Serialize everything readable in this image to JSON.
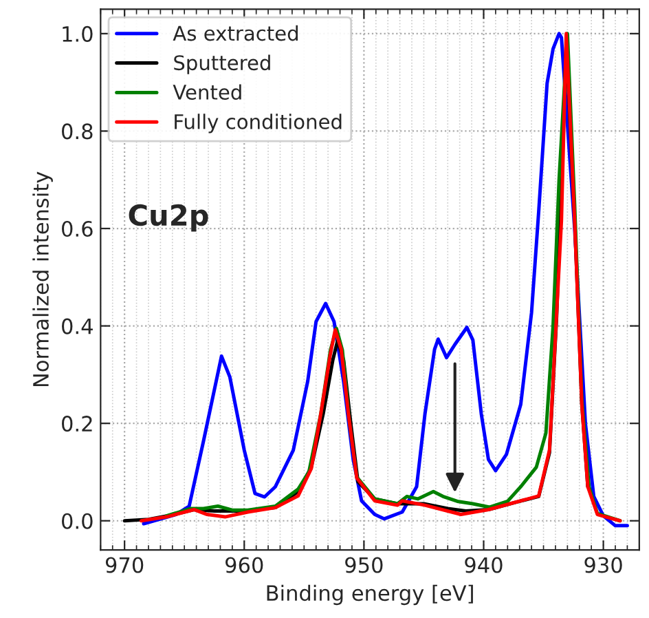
{
  "chart_data": {
    "type": "line",
    "xlabel": "Binding energy [eV]",
    "ylabel": "Normalized intensity",
    "annotations": [
      "Cu2p"
    ],
    "xlim": [
      972,
      927
    ],
    "ylim": [
      -0.06,
      1.05
    ],
    "xticks": [
      970,
      960,
      950,
      940,
      930
    ],
    "yticks": [
      {
        "value": 0,
        "label": "0.0"
      },
      {
        "value": 0.2,
        "label": "0.2"
      },
      {
        "value": 0.4,
        "label": "0.4"
      },
      {
        "value": 0.6,
        "label": "0.6"
      },
      {
        "value": 0.8,
        "label": "0.8"
      },
      {
        "value": 1.0,
        "label": "1.0"
      }
    ],
    "grid": true,
    "legend": "top left",
    "line_style": "solid",
    "series": [
      {
        "name": "As extracted",
        "color": "#0000ff",
        "x": [
          968.4,
          965.7,
          964.6,
          963.4,
          961.9,
          961.2,
          960.0,
          959.1,
          958.3,
          957.4,
          955.9,
          954.7,
          954.0,
          953.2,
          952.5,
          951.7,
          950.9,
          950.2,
          949.1,
          948.3,
          946.8,
          945.6,
          944.9,
          944.1,
          943.8,
          943.1,
          942.4,
          941.4,
          940.9,
          940.2,
          939.6,
          939.0,
          938.1,
          936.9,
          936.0,
          935.4,
          934.7,
          934.2,
          933.7,
          933.5,
          932.4,
          931.5,
          930.8,
          930.0,
          929.0,
          928.0
        ],
        "values": [
          -0.006,
          0.013,
          0.03,
          0.164,
          0.338,
          0.295,
          0.145,
          0.056,
          0.049,
          0.07,
          0.145,
          0.286,
          0.409,
          0.446,
          0.409,
          0.286,
          0.126,
          0.041,
          0.013,
          0.004,
          0.018,
          0.07,
          0.22,
          0.352,
          0.373,
          0.335,
          0.362,
          0.397,
          0.371,
          0.22,
          0.126,
          0.103,
          0.136,
          0.239,
          0.427,
          0.635,
          0.898,
          0.969,
          1.0,
          0.992,
          0.6,
          0.2,
          0.05,
          0.01,
          -0.01,
          -0.01
        ]
      },
      {
        "name": "Sputtered",
        "color": "#000000",
        "x": [
          970,
          968,
          966,
          964.2,
          962.5,
          960,
          957.4,
          955.5,
          954.4,
          953.4,
          952.6,
          952.2,
          951.7,
          951.1,
          950.5,
          949.1,
          947.2,
          945,
          943,
          941.5,
          939.6,
          937,
          935.4,
          934.5,
          933.9,
          933.5,
          933.1,
          932.4,
          931.8,
          931.3
        ],
        "values": [
          0.0,
          0.003,
          0.012,
          0.023,
          0.02,
          0.02,
          0.027,
          0.06,
          0.11,
          0.22,
          0.33,
          0.37,
          0.33,
          0.2,
          0.08,
          0.045,
          0.035,
          0.035,
          0.025,
          0.02,
          0.023,
          0.04,
          0.05,
          0.14,
          0.42,
          0.7,
          0.98,
          0.62,
          0.24,
          0.07
        ]
      },
      {
        "name": "Vented",
        "color": "#008000",
        "x": [
          966.5,
          964.5,
          963.4,
          962.2,
          961.0,
          959.7,
          957.4,
          955.5,
          954.6,
          953.6,
          952.8,
          952.3,
          951.8,
          951.2,
          950.6,
          949.1,
          947.2,
          946.4,
          945.5,
          944.2,
          943.4,
          942.2,
          940.9,
          939.5,
          938.0,
          936.9,
          935.6,
          934.8,
          934.2,
          933.7,
          933.0,
          932.4,
          931.8,
          931.2,
          930.5,
          928.6
        ],
        "values": [
          0.01,
          0.025,
          0.025,
          0.03,
          0.022,
          0.022,
          0.03,
          0.065,
          0.1,
          0.22,
          0.35,
          0.395,
          0.35,
          0.2,
          0.09,
          0.045,
          0.035,
          0.05,
          0.045,
          0.06,
          0.05,
          0.04,
          0.035,
          0.028,
          0.04,
          0.07,
          0.11,
          0.18,
          0.4,
          0.7,
          1.0,
          0.65,
          0.25,
          0.07,
          0.015,
          0.0
        ]
      },
      {
        "name": "Fully conditioned",
        "color": "#ff0000",
        "x": [
          968.6,
          966.5,
          964.2,
          963.1,
          961.6,
          959.7,
          957.4,
          955.5,
          954.4,
          953.6,
          952.8,
          952.4,
          951.9,
          951.3,
          950.6,
          949.1,
          947.2,
          946.8,
          944.9,
          941.9,
          939.6,
          936.9,
          935.4,
          934.5,
          933.9,
          933.5,
          933.1,
          932.4,
          931.8,
          931.3,
          930.5,
          928.6
        ],
        "values": [
          0.0,
          0.008,
          0.023,
          0.013,
          0.008,
          0.018,
          0.027,
          0.051,
          0.107,
          0.22,
          0.343,
          0.392,
          0.352,
          0.22,
          0.088,
          0.041,
          0.032,
          0.041,
          0.032,
          0.013,
          0.023,
          0.041,
          0.051,
          0.145,
          0.427,
          0.616,
          1.0,
          0.616,
          0.239,
          0.07,
          0.013,
          0.0
        ]
      }
    ]
  }
}
